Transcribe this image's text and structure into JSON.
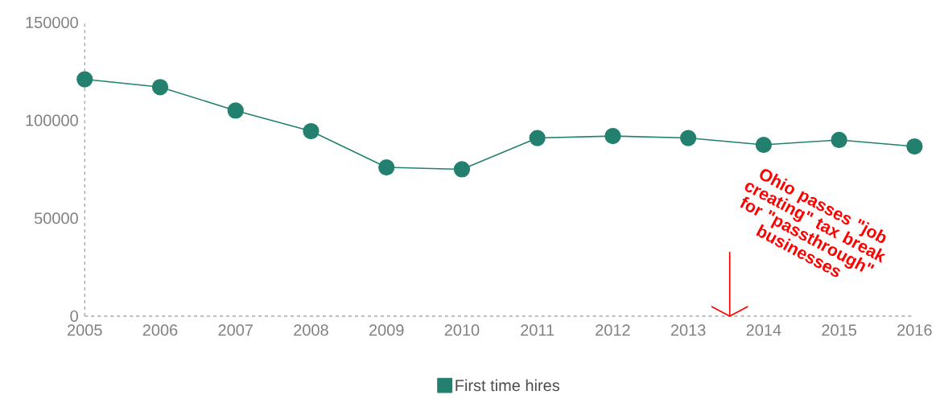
{
  "chart_data": {
    "type": "line",
    "x": [
      2005,
      2006,
      2007,
      2008,
      2009,
      2010,
      2011,
      2012,
      2013,
      2014,
      2015,
      2016
    ],
    "series": [
      {
        "name": "First time hires",
        "color": "#23806f",
        "values": [
          121000,
          117000,
          105000,
          94500,
          76000,
          75000,
          91000,
          92000,
          91000,
          87500,
          90000,
          86700
        ]
      }
    ],
    "xlim": [
      2005,
      2016
    ],
    "xticks": [
      2005,
      2006,
      2007,
      2008,
      2009,
      2010,
      2011,
      2012,
      2013,
      2014,
      2015,
      2016
    ],
    "ylim": [
      0,
      150000
    ],
    "yticks": [
      0,
      50000,
      100000,
      150000
    ],
    "ref_lines": [
      {
        "axis": "x",
        "value": 2013.55,
        "label": "Ohio passes \"job creating\" tax break for \"passthrough\" businesses",
        "color": "#ff0000"
      }
    ],
    "grid": false,
    "legend": "bottom",
    "marker": "circle",
    "line_style": "solid"
  }
}
